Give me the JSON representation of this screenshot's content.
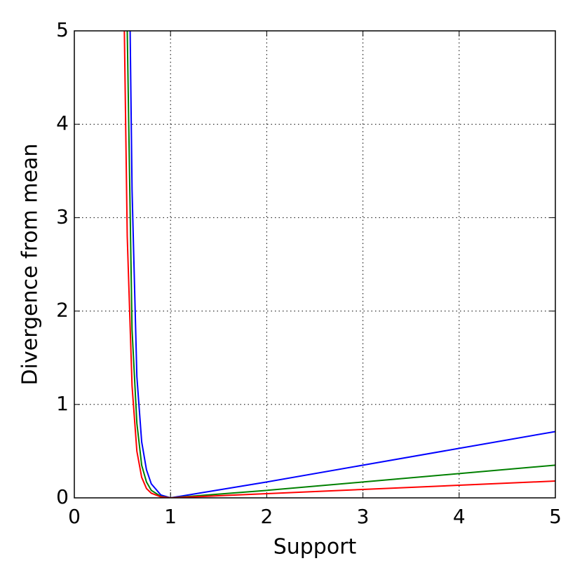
{
  "chart_data": {
    "type": "line",
    "xlabel": "Support",
    "ylabel": "Divergence from mean",
    "xlim": [
      0,
      5
    ],
    "ylim": [
      0,
      5
    ],
    "xticks": [
      0,
      1,
      2,
      3,
      4,
      5
    ],
    "yticks": [
      0,
      1,
      2,
      3,
      4,
      5
    ],
    "grid": true,
    "series": [
      {
        "color": "#0000ff",
        "x": [
          0.58,
          0.6,
          0.65,
          0.7,
          0.75,
          0.8,
          0.9,
          1,
          2,
          3,
          4,
          5
        ],
        "values": [
          5,
          3.3,
          1.3,
          0.6,
          0.3,
          0.15,
          0.03,
          0,
          0.17,
          0.35,
          0.53,
          0.71
        ]
      },
      {
        "color": "#008000",
        "x": [
          0.55,
          0.6,
          0.65,
          0.7,
          0.75,
          0.8,
          0.9,
          1,
          2,
          3,
          4,
          5
        ],
        "values": [
          5,
          1.8,
          0.8,
          0.35,
          0.17,
          0.08,
          0.015,
          0,
          0.08,
          0.17,
          0.26,
          0.35
        ]
      },
      {
        "color": "#ff0000",
        "x": [
          0.52,
          0.55,
          0.6,
          0.65,
          0.7,
          0.75,
          0.8,
          0.9,
          1,
          2,
          3,
          4,
          5
        ],
        "values": [
          5,
          2.8,
          1.2,
          0.5,
          0.22,
          0.1,
          0.05,
          0.01,
          0,
          0.045,
          0.09,
          0.135,
          0.18
        ]
      }
    ]
  }
}
